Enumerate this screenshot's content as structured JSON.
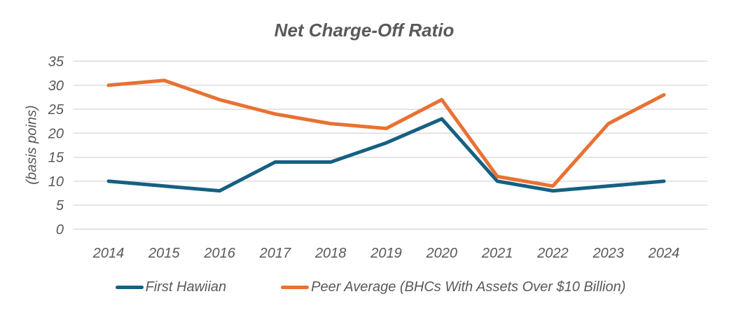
{
  "chart_data": {
    "type": "line",
    "title": "Net Charge-Off Ratio",
    "ylabel": "(basis poins)",
    "xlabel": "",
    "categories": [
      "2014",
      "2015",
      "2016",
      "2017",
      "2018",
      "2019",
      "2020",
      "2021",
      "2022",
      "2023",
      "2024"
    ],
    "series": [
      {
        "name": "First Hawiian",
        "color": "#156082",
        "values": [
          10,
          9,
          8,
          14,
          14,
          18,
          23,
          10,
          8,
          9,
          10
        ]
      },
      {
        "name": "Peer Average (BHCs With Assets Over $10 Billion)",
        "color": "#E97132",
        "values": [
          30,
          31,
          27,
          24,
          22,
          21,
          27,
          11,
          9,
          22,
          28
        ]
      }
    ],
    "ylim": [
      0,
      35
    ],
    "ytick_step": 5,
    "yticks": [
      "0",
      "5",
      "10",
      "15",
      "20",
      "25",
      "30",
      "35"
    ],
    "grid": true,
    "legend_position": "bottom"
  },
  "style": {
    "text_color": "#595959",
    "gridline_color": "#D9D9D9",
    "background": "#FFFFFF"
  }
}
